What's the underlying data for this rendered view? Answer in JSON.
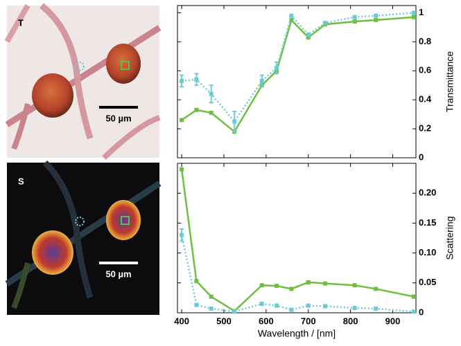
{
  "panels": [
    {
      "label": "T",
      "scale_bar": "50 µm"
    },
    {
      "label": "S",
      "scale_bar": "50 µm"
    }
  ],
  "chart_data": [
    {
      "type": "line",
      "ylabel": "Transmittance",
      "xlim": [
        390,
        955
      ],
      "xticks": [
        400,
        500,
        600,
        700,
        800,
        900
      ],
      "ylim": [
        0,
        1.05
      ],
      "yticks": [
        0,
        0.2,
        0.4,
        0.6,
        0.8,
        1
      ],
      "x": [
        400,
        435,
        470,
        525,
        590,
        625,
        660,
        700,
        740,
        810,
        860,
        950
      ],
      "series": [
        {
          "color": "#6cbf3f",
          "style": "solid",
          "values": [
            0.26,
            0.33,
            0.31,
            0.18,
            0.5,
            0.6,
            0.95,
            0.83,
            0.92,
            0.94,
            0.95,
            0.97
          ]
        },
        {
          "color": "#6ccad8",
          "style": "dotted",
          "values": [
            0.53,
            0.54,
            0.44,
            0.25,
            0.53,
            0.62,
            0.98,
            0.85,
            0.93,
            0.97,
            0.98,
            1.0
          ],
          "errors": [
            0.04,
            0.04,
            0.06,
            0.07,
            0.04,
            0.04,
            null,
            null,
            null,
            null,
            null,
            null
          ]
        }
      ]
    },
    {
      "type": "line",
      "ylabel": "Scattering",
      "xlabel": "Wavelength / [nm]",
      "xlim": [
        390,
        955
      ],
      "xticks": [
        400,
        500,
        600,
        700,
        800,
        900
      ],
      "ylim": [
        0,
        0.25
      ],
      "yticks": [
        0,
        0.05,
        {
          "value": 0.1,
          "label": "0.10"
        },
        0.15,
        {
          "value": 0.2,
          "label": "0.20"
        }
      ],
      "x": [
        400,
        435,
        470,
        525,
        590,
        625,
        660,
        700,
        740,
        810,
        860,
        950
      ],
      "series": [
        {
          "color": "#6cbf3f",
          "style": "solid",
          "values": [
            0.24,
            0.053,
            0.027,
            0.003,
            0.046,
            0.045,
            0.04,
            0.051,
            0.049,
            0.046,
            0.04,
            0.027
          ]
        },
        {
          "color": "#6ccad8",
          "style": "dotted",
          "values": [
            0.13,
            0.013,
            0.007,
            0.002,
            0.015,
            0.012,
            0.005,
            0.012,
            0.011,
            0.008,
            0.007,
            0.002
          ],
          "errors": [
            0.01,
            null,
            null,
            null,
            null,
            null,
            null,
            null,
            null,
            null,
            null,
            null
          ]
        }
      ]
    }
  ]
}
